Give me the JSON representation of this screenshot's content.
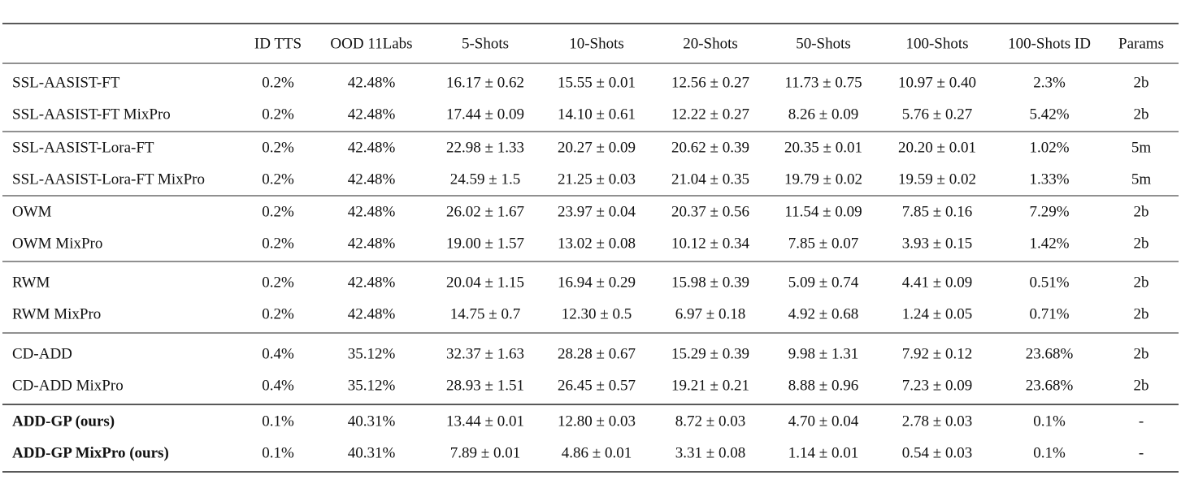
{
  "table": {
    "header": [
      "ID TTS",
      "OOD 11Labs",
      "5-Shots",
      "10-Shots",
      "20-Shots",
      "50-Shots",
      "100-Shots",
      "100-Shots ID",
      "Params"
    ],
    "groups": [
      [
        [
          "SSL-AASIST-FT",
          "0.2%",
          "42.48%",
          "16.17 ± 0.62",
          "15.55 ± 0.01",
          "12.56 ± 0.27",
          "11.73 ± 0.75",
          "10.97 ± 0.40",
          "2.3%",
          "2b"
        ],
        [
          "SSL-AASIST-FT MixPro",
          "0.2%",
          "42.48%",
          "17.44 ± 0.09",
          "14.10 ± 0.61",
          "12.22 ± 0.27",
          "8.26 ± 0.09",
          "5.76 ± 0.27",
          "5.42%",
          "2b"
        ]
      ],
      [
        [
          "SSL-AASIST-Lora-FT",
          "0.2%",
          "42.48%",
          "22.98 ± 1.33",
          "20.27 ± 0.09",
          "20.62 ± 0.39",
          "20.35 ± 0.01",
          "20.20 ± 0.01",
          "1.02%",
          "5m"
        ],
        [
          "SSL-AASIST-Lora-FT MixPro",
          "0.2%",
          "42.48%",
          "24.59 ± 1.5",
          "21.25 ± 0.03",
          "21.04 ± 0.35",
          "19.79 ± 0.02",
          "19.59 ± 0.02",
          "1.33%",
          "5m"
        ]
      ],
      [
        [
          "OWM",
          "0.2%",
          "42.48%",
          "26.02 ± 1.67",
          "23.97 ± 0.04",
          "20.37 ± 0.56",
          "11.54 ± 0.09",
          "7.85 ± 0.16",
          "7.29%",
          "2b"
        ],
        [
          "OWM MixPro",
          "0.2%",
          "42.48%",
          "19.00 ± 1.57",
          "13.02 ± 0.08",
          "10.12 ± 0.34",
          "7.85 ± 0.07",
          "3.93 ± 0.15",
          "1.42%",
          "2b"
        ]
      ],
      [
        [
          "RWM",
          "0.2%",
          "42.48%",
          "20.04 ± 1.15",
          "16.94 ± 0.29",
          "15.98 ± 0.39",
          "5.09 ± 0.74",
          "4.41 ± 0.09",
          "0.51%",
          "2b"
        ],
        [
          "RWM MixPro",
          "0.2%",
          "42.48%",
          "14.75 ± 0.7",
          "12.30 ± 0.5",
          "6.97 ± 0.18",
          "4.92 ± 0.68",
          "1.24 ± 0.05",
          "0.71%",
          "2b"
        ]
      ],
      [
        [
          "CD-ADD",
          "0.4%",
          "35.12%",
          "32.37 ± 1.63",
          "28.28 ± 0.67",
          "15.29 ± 0.39",
          "9.98 ± 1.31",
          "7.92 ± 0.12",
          "23.68%",
          "2b"
        ],
        [
          "CD-ADD MixPro",
          "0.4%",
          "35.12%",
          "28.93 ± 1.51",
          "26.45 ± 0.57",
          "19.21 ± 0.21",
          "8.88 ± 0.96",
          "7.23 ± 0.09",
          "23.68%",
          "2b"
        ]
      ],
      [
        [
          "ADD-GP (ours)",
          "0.1%",
          "40.31%",
          "13.44 ± 0.01",
          "12.80 ± 0.03",
          "8.72 ± 0.03",
          "4.70 ± 0.04",
          "2.78 ± 0.03",
          "0.1%",
          "-"
        ],
        [
          "ADD-GP MixPro (ours)",
          "0.1%",
          "40.31%",
          "7.89 ± 0.01",
          "4.86 ± 0.01",
          "3.31 ± 0.08",
          "1.14 ± 0.01",
          "0.54 ± 0.03",
          "0.1%",
          "-"
        ]
      ]
    ]
  }
}
